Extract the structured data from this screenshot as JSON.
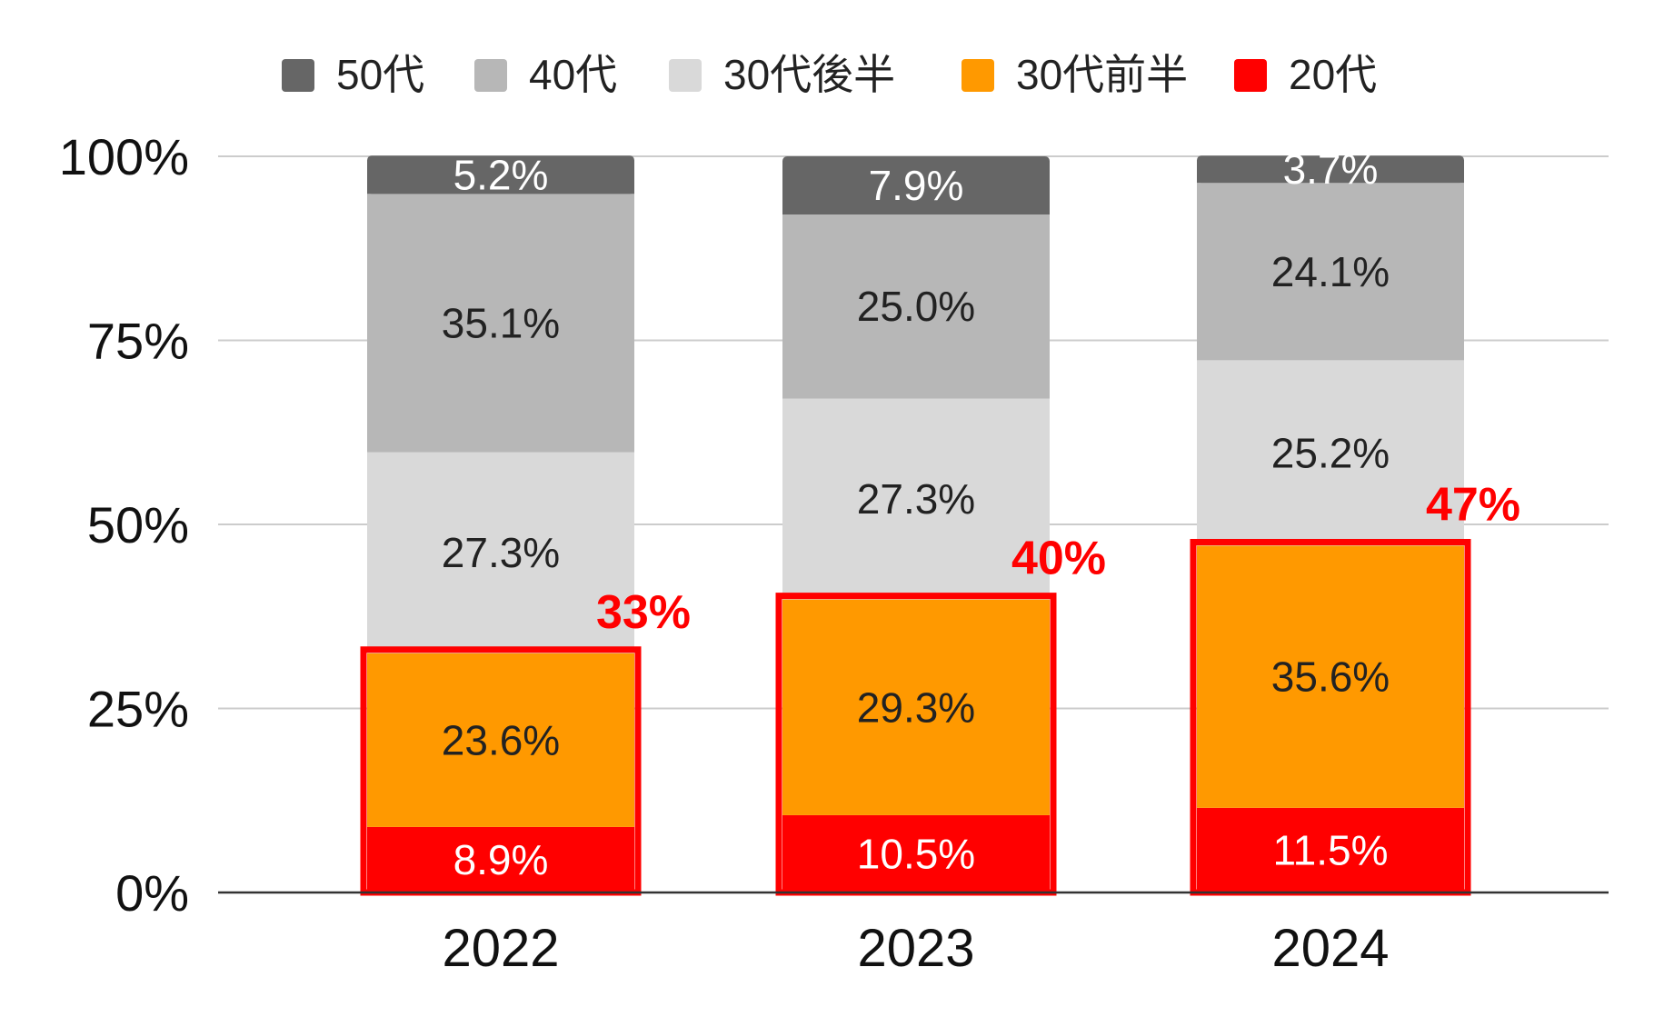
{
  "chart_data": {
    "type": "bar",
    "stacked": true,
    "title": "",
    "xlabel": "",
    "ylabel": "",
    "ylim": [
      0,
      100
    ],
    "yticks": [
      "0%",
      "25%",
      "50%",
      "75%",
      "100%"
    ],
    "ytick_values": [
      0,
      25,
      50,
      75,
      100
    ],
    "categories": [
      "2022",
      "2023",
      "2024"
    ],
    "legend_position": "top",
    "series": [
      {
        "name": "20代",
        "color": "#ff0000",
        "label_color": "#ffffff",
        "values": [
          8.9,
          10.5,
          11.5
        ],
        "labels": [
          "8.9%",
          "10.5%",
          "11.5%"
        ]
      },
      {
        "name": "30代前半",
        "color": "#ff9900",
        "label_color": "#222222",
        "values": [
          23.6,
          29.3,
          35.6
        ],
        "labels": [
          "23.6%",
          "29.3%",
          "35.6%"
        ]
      },
      {
        "name": "30代後半",
        "color": "#d9d9d9",
        "label_color": "#222222",
        "values": [
          27.3,
          27.3,
          25.2
        ],
        "labels": [
          "27.3%",
          "27.3%",
          "25.2%"
        ]
      },
      {
        "name": "40代",
        "color": "#b7b7b7",
        "label_color": "#222222",
        "values": [
          35.1,
          25.0,
          24.1
        ],
        "labels": [
          "35.1%",
          "25.0%",
          "24.1%"
        ]
      },
      {
        "name": "50代",
        "color": "#666666",
        "label_color": "#ffffff",
        "values": [
          5.2,
          7.9,
          3.7
        ],
        "labels": [
          "5.2%",
          "7.9%",
          "3.7%"
        ]
      }
    ],
    "legend_order": [
      "50代",
      "40代",
      "30代後半",
      "30代前半",
      "20代"
    ],
    "annotations": {
      "highlight_color": "#ff0000",
      "highlight_series": [
        "20代",
        "30代前半"
      ],
      "totals": [
        32.5,
        39.8,
        47.1
      ],
      "labels": [
        "33%",
        "40%",
        "47%"
      ]
    }
  }
}
